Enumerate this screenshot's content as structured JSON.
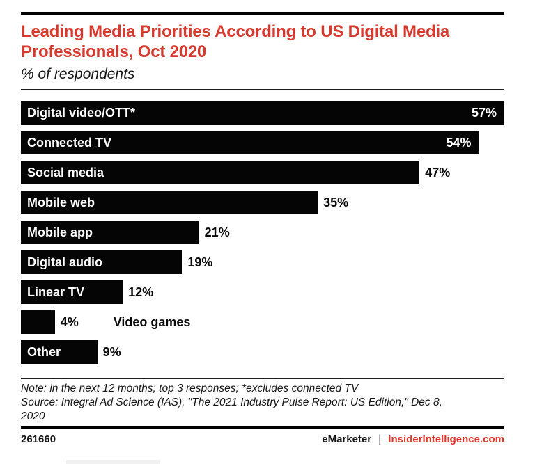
{
  "header": {
    "title": "Leading Media Priorities According to US Digital Media Professionals, Oct 2020",
    "subtitle": "% of respondents"
  },
  "chart_data": {
    "type": "bar",
    "orientation": "horizontal",
    "title": "Leading Media Priorities According to US Digital Media Professionals, Oct 2020",
    "subtitle": "% of respondents",
    "unit": "%",
    "xlim": [
      0,
      57
    ],
    "grid": false,
    "legend": "none",
    "bar_color": "#050505",
    "categories": [
      "Digital video/OTT*",
      "Connected TV",
      "Social media",
      "Mobile web",
      "Mobile app",
      "Digital audio",
      "Linear TV",
      "Video games",
      "Other"
    ],
    "values": [
      57,
      54,
      47,
      35,
      21,
      19,
      12,
      4,
      9
    ],
    "bars": [
      {
        "category": "Digital video/OTT*",
        "value": 57,
        "value_label": "57%",
        "label_placement": "inside",
        "value_placement": "inside"
      },
      {
        "category": "Connected TV",
        "value": 54,
        "value_label": "54%",
        "label_placement": "inside",
        "value_placement": "inside"
      },
      {
        "category": "Social media",
        "value": 47,
        "value_label": "47%",
        "label_placement": "inside",
        "value_placement": "outside"
      },
      {
        "category": "Mobile web",
        "value": 35,
        "value_label": "35%",
        "label_placement": "inside",
        "value_placement": "outside"
      },
      {
        "category": "Mobile app",
        "value": 21,
        "value_label": "21%",
        "label_placement": "inside",
        "value_placement": "outside"
      },
      {
        "category": "Digital audio",
        "value": 19,
        "value_label": "19%",
        "label_placement": "inside",
        "value_placement": "outside"
      },
      {
        "category": "Linear TV",
        "value": 12,
        "value_label": "12%",
        "label_placement": "inside",
        "value_placement": "outside"
      },
      {
        "category": "Video games",
        "value": 4,
        "value_label": "4%",
        "label_placement": "outside",
        "value_placement": "outside"
      },
      {
        "category": "Other",
        "value": 9,
        "value_label": "9%",
        "label_placement": "inside",
        "value_placement": "outside"
      }
    ]
  },
  "footer": {
    "note_lines": [
      "Note: in the next 12 months; top 3 responses; *excludes connected TV",
      "Source: Integral Ad Science (IAS), \"The 2021 Industry Pulse Report: US Edition,\" Dec 8,",
      "2020"
    ],
    "chart_id": "261660",
    "brand": "eMarketer",
    "separator": "|",
    "site": "InsiderIntelligence.com"
  },
  "colors": {
    "title_red": "#d63a2f",
    "site_red": "#e0352a",
    "bar_black": "#050505"
  }
}
